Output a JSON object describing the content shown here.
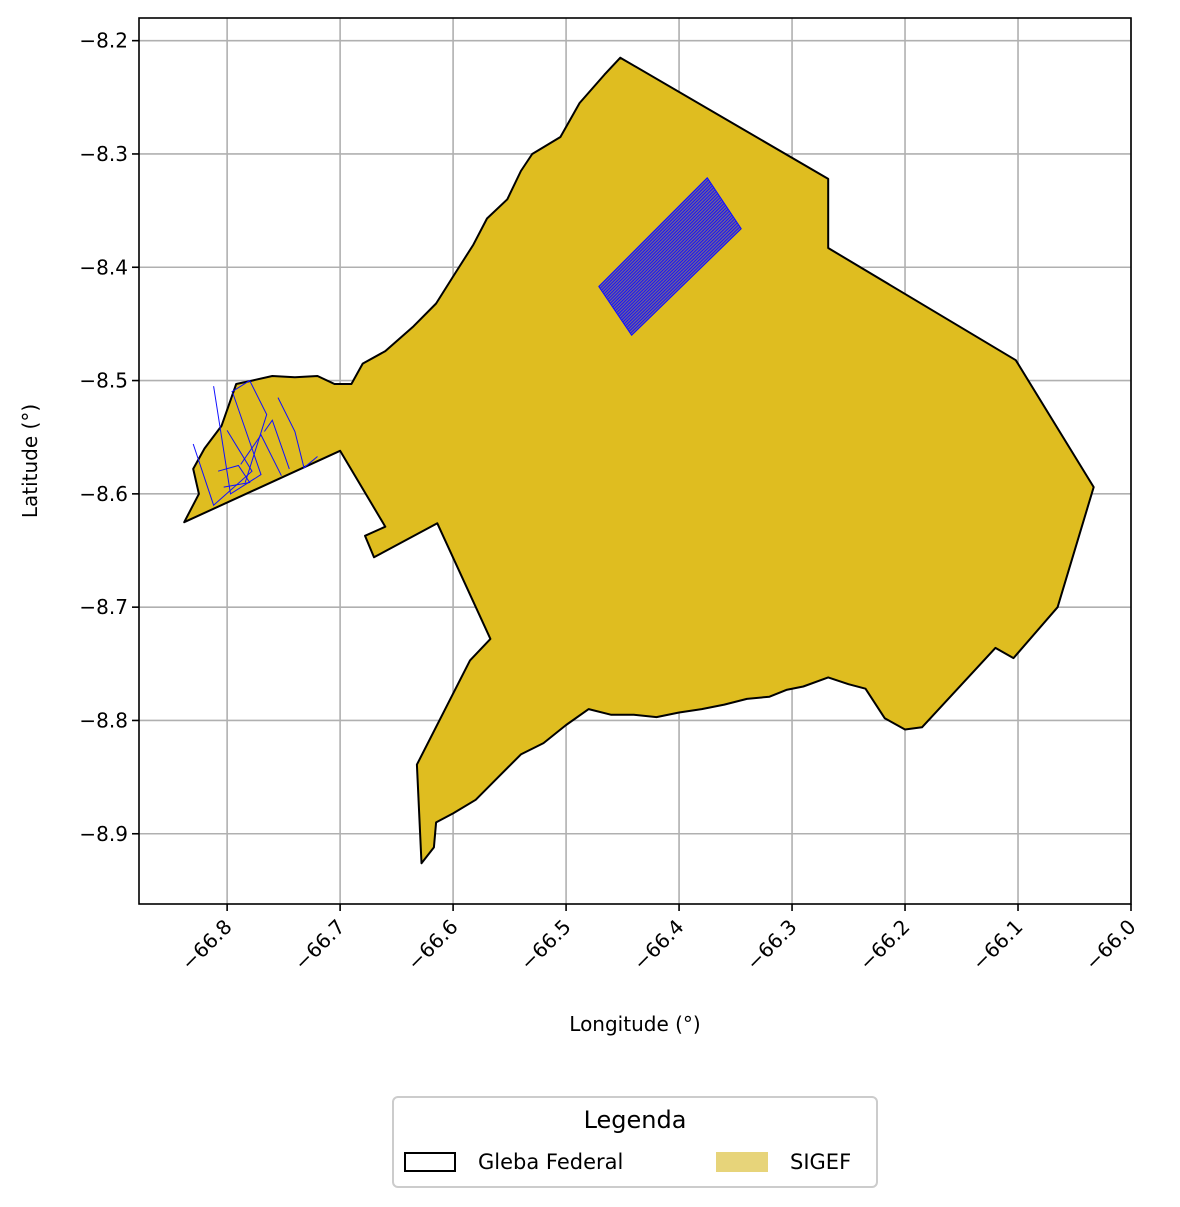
{
  "chart_data": {
    "type": "map",
    "title": "",
    "xlabel": "Longitude (°)",
    "ylabel": "Latitude (°)",
    "xlim": [
      -66.878,
      -66.0
    ],
    "ylim": [
      -8.962,
      -8.18
    ],
    "grid": true,
    "x_ticks": [
      -66.8,
      -66.7,
      -66.6,
      -66.5,
      -66.4,
      -66.3,
      -66.2,
      -66.1,
      -66.0
    ],
    "y_ticks": [
      -8.2,
      -8.3,
      -8.4,
      -8.5,
      -8.6,
      -8.7,
      -8.8,
      -8.9
    ],
    "x_tick_labels": [
      "−66.8",
      "−66.7",
      "−66.6",
      "−66.5",
      "−66.4",
      "−66.3",
      "−66.2",
      "−66.1",
      "−66.0"
    ],
    "y_tick_labels": [
      "−8.2",
      "−8.3",
      "−8.4",
      "−8.5",
      "−8.6",
      "−8.7",
      "−8.8",
      "−8.9"
    ],
    "colors": {
      "sigef_fill": "#dfbd20",
      "parcel_lines": "#1010ff",
      "outline": "#000000",
      "grid": "#b0b0b0"
    },
    "gleba_polygon": [
      [
        -66.452,
        -8.215
      ],
      [
        -66.268,
        -8.322
      ],
      [
        -66.268,
        -8.383
      ],
      [
        -66.102,
        -8.482
      ],
      [
        -66.033,
        -8.594
      ],
      [
        -66.065,
        -8.7
      ],
      [
        -66.104,
        -8.745
      ],
      [
        -66.12,
        -8.736
      ],
      [
        -66.185,
        -8.806
      ],
      [
        -66.2,
        -8.808
      ],
      [
        -66.218,
        -8.798
      ],
      [
        -66.235,
        -8.772
      ],
      [
        -66.25,
        -8.768
      ],
      [
        -66.268,
        -8.762
      ],
      [
        -66.29,
        -8.77
      ],
      [
        -66.305,
        -8.773
      ],
      [
        -66.32,
        -8.779
      ],
      [
        -66.34,
        -8.781
      ],
      [
        -66.36,
        -8.786
      ],
      [
        -66.38,
        -8.79
      ],
      [
        -66.4,
        -8.793
      ],
      [
        -66.42,
        -8.797
      ],
      [
        -66.44,
        -8.795
      ],
      [
        -66.46,
        -8.795
      ],
      [
        -66.48,
        -8.79
      ],
      [
        -66.5,
        -8.804
      ],
      [
        -66.52,
        -8.82
      ],
      [
        -66.54,
        -8.83
      ],
      [
        -66.56,
        -8.85
      ],
      [
        -66.58,
        -8.87
      ],
      [
        -66.6,
        -8.882
      ],
      [
        -66.615,
        -8.89
      ],
      [
        -66.617,
        -8.912
      ],
      [
        -66.628,
        -8.926
      ],
      [
        -66.632,
        -8.839
      ],
      [
        -66.585,
        -8.747
      ],
      [
        -66.567,
        -8.728
      ],
      [
        -66.614,
        -8.626
      ],
      [
        -66.67,
        -8.656
      ],
      [
        -66.678,
        -8.637
      ],
      [
        -66.66,
        -8.629
      ],
      [
        -66.7,
        -8.562
      ],
      [
        -66.838,
        -8.625
      ],
      [
        -66.825,
        -8.6
      ],
      [
        -66.83,
        -8.578
      ],
      [
        -66.82,
        -8.56
      ],
      [
        -66.805,
        -8.54
      ],
      [
        -66.792,
        -8.503
      ],
      [
        -66.778,
        -8.5
      ],
      [
        -66.76,
        -8.496
      ],
      [
        -66.74,
        -8.497
      ],
      [
        -66.72,
        -8.496
      ],
      [
        -66.705,
        -8.503
      ],
      [
        -66.69,
        -8.503
      ],
      [
        -66.68,
        -8.485
      ],
      [
        -66.66,
        -8.474
      ],
      [
        -66.635,
        -8.452
      ],
      [
        -66.615,
        -8.432
      ],
      [
        -66.598,
        -8.405
      ],
      [
        -66.582,
        -8.38
      ],
      [
        -66.57,
        -8.357
      ],
      [
        -66.552,
        -8.34
      ],
      [
        -66.54,
        -8.315
      ],
      [
        -66.53,
        -8.3
      ],
      [
        -66.505,
        -8.285
      ],
      [
        -66.488,
        -8.255
      ],
      [
        -66.466,
        -8.23
      ]
    ],
    "sigef_parcels": [
      [
        [
          -66.83,
          -8.556
        ],
        [
          -66.812,
          -8.61
        ],
        [
          -66.778,
          -8.58
        ],
        [
          -66.8,
          -8.544
        ]
      ],
      [
        [
          -66.812,
          -8.505
        ],
        [
          -66.797,
          -8.6
        ],
        [
          -66.77,
          -8.583
        ],
        [
          -66.795,
          -8.511
        ]
      ],
      [
        [
          -66.796,
          -8.51
        ],
        [
          -66.78,
          -8.5
        ],
        [
          -66.765,
          -8.53
        ],
        [
          -66.784,
          -8.59
        ]
      ],
      [
        [
          -66.808,
          -8.58
        ],
        [
          -66.79,
          -8.575
        ],
        [
          -66.78,
          -8.59
        ],
        [
          -66.803,
          -8.594
        ]
      ],
      [
        [
          -66.788,
          -8.574
        ],
        [
          -66.77,
          -8.548
        ],
        [
          -66.752,
          -8.584
        ]
      ],
      [
        [
          -66.755,
          -8.515
        ],
        [
          -66.74,
          -8.545
        ],
        [
          -66.732,
          -8.577
        ],
        [
          -66.72,
          -8.567
        ]
      ],
      [
        [
          -66.767,
          -8.545
        ],
        [
          -66.76,
          -8.535
        ],
        [
          -66.745,
          -8.578
        ]
      ]
    ],
    "sigef_strip": {
      "corners": [
        [
          -66.471,
          -8.417
        ],
        [
          -66.375,
          -8.321
        ],
        [
          -66.345,
          -8.366
        ],
        [
          -66.442,
          -8.46
        ]
      ],
      "line_count": 26
    }
  },
  "legend": {
    "title": "Legenda",
    "items": [
      {
        "label": "Gleba Federal"
      },
      {
        "label": "SIGEF"
      }
    ]
  }
}
